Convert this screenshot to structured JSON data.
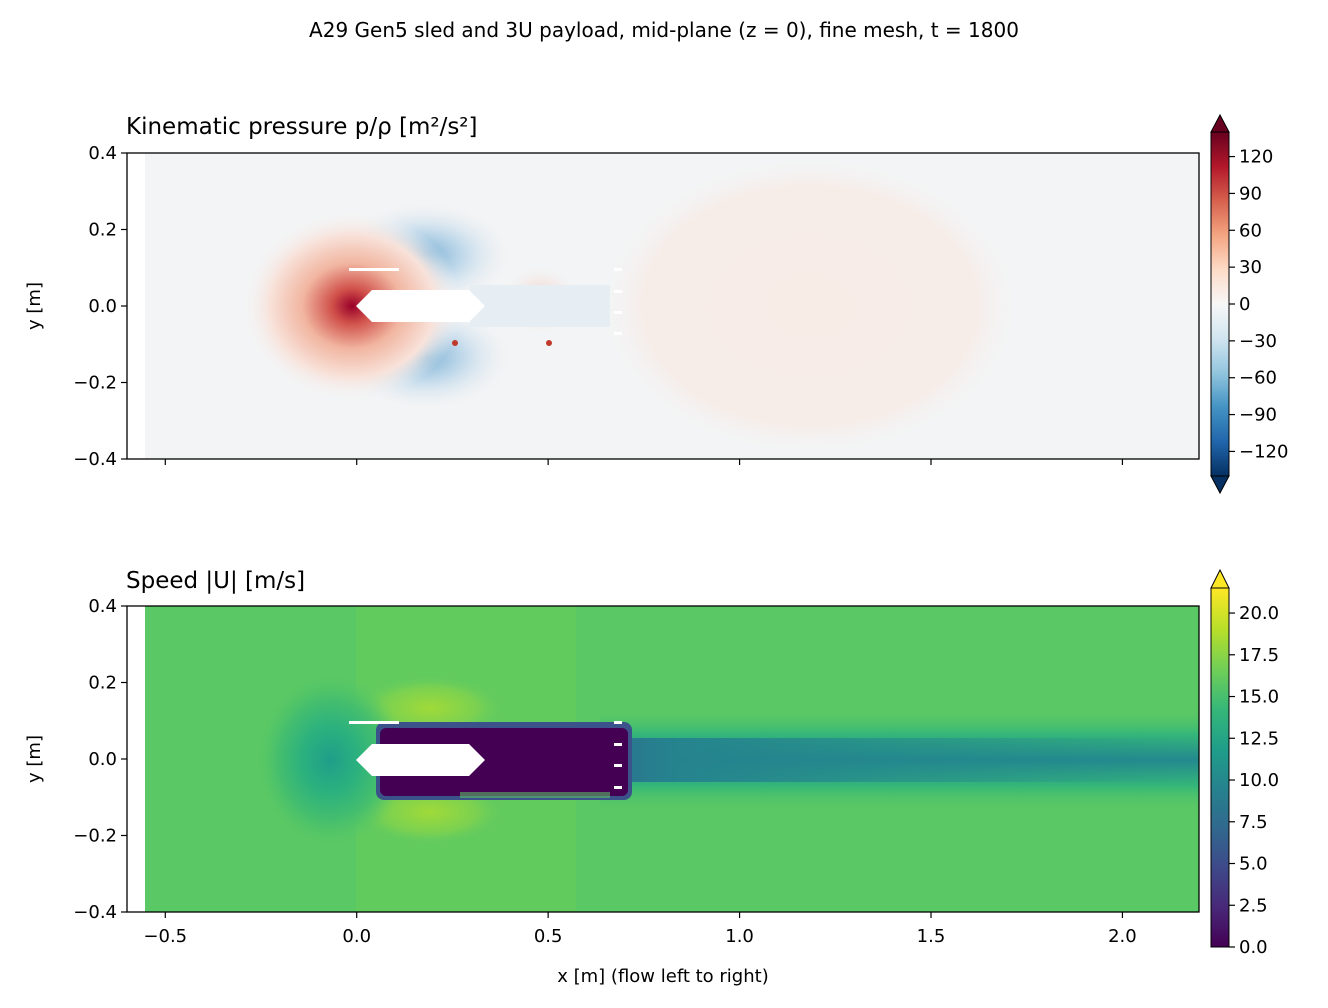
{
  "suptitle": "A29  Gen5 sled and 3U payload, mid-plane (z = 0), fine mesh, t = 1800",
  "xlabel": "x  [m]   (flow left to right)",
  "colors": {
    "body_outline": "#ffffff",
    "farfield_pressure": "#f3f4f5",
    "farfield_speed": "#5ac864"
  },
  "chart_data": [
    {
      "type": "heatmap",
      "title": "Kinematic pressure  p/ρ  [m²/s²]",
      "ylabel": "y  [m]",
      "xlim": [
        -0.6,
        2.2
      ],
      "ylim": [
        -0.4,
        0.4
      ],
      "domain_x": [
        -0.55,
        2.2
      ],
      "x_ticks": [
        -0.5,
        0.0,
        0.5,
        1.0,
        1.5,
        2.0
      ],
      "y_ticks": [
        0.4,
        0.2,
        0.0,
        -0.2,
        -0.4
      ],
      "y_tick_labels": [
        "0.4",
        "0.2",
        "0.0",
        "−0.2",
        "−0.4"
      ],
      "x_tick_labels_shown": false,
      "colormap": "RdBu_r",
      "colorbar": {
        "range": [
          -140,
          140
        ],
        "extend": "both",
        "ticks": [
          120,
          90,
          60,
          30,
          0,
          -30,
          -60,
          -90,
          -120
        ],
        "tick_labels": [
          "120",
          "90",
          "60",
          "30",
          "0",
          "−30",
          "−60",
          "−90",
          "−120"
        ]
      },
      "features": [
        {
          "name": "stagnation high pressure",
          "x": -0.02,
          "y": 0.0,
          "value": 140
        },
        {
          "name": "suction above body",
          "x": 0.18,
          "y": 0.14,
          "value": -45
        },
        {
          "name": "suction below body",
          "x": 0.18,
          "y": -0.14,
          "value": -45
        },
        {
          "name": "wake slight positive",
          "x": 1.05,
          "y": 0.0,
          "value": 4
        }
      ]
    },
    {
      "type": "heatmap",
      "title": "Speed  |U|  [m/s]",
      "ylabel": "y  [m]",
      "xlim": [
        -0.6,
        2.2
      ],
      "ylim": [
        -0.4,
        0.4
      ],
      "domain_x": [
        -0.55,
        2.2
      ],
      "x_ticks": [
        -0.5,
        0.0,
        0.5,
        1.0,
        1.5,
        2.0
      ],
      "x_tick_labels": [
        "−0.5",
        "0.0",
        "0.5",
        "1.0",
        "1.5",
        "2.0"
      ],
      "y_ticks": [
        0.4,
        0.2,
        0.0,
        -0.2,
        -0.4
      ],
      "y_tick_labels": [
        "0.4",
        "0.2",
        "0.0",
        "−0.2",
        "−0.4"
      ],
      "colormap": "viridis",
      "colorbar": {
        "range": [
          0,
          21.5
        ],
        "extend": "max",
        "ticks": [
          20.0,
          17.5,
          15.0,
          12.5,
          10.0,
          7.5,
          5.0,
          2.5,
          0.0
        ],
        "tick_labels": [
          "20.0",
          "17.5",
          "15.0",
          "12.5",
          "10.0",
          "7.5",
          "5.0",
          "2.5",
          "0.0"
        ]
      },
      "features": [
        {
          "name": "free stream",
          "value": 15.5
        },
        {
          "name": "upstream deceleration",
          "x": -0.15,
          "y": 0.0,
          "value": 11
        },
        {
          "name": "shoulder acceleration",
          "x": 0.2,
          "y": 0.12,
          "value": 17.5
        },
        {
          "name": "recirculation region",
          "x": 0.45,
          "y": 0.0,
          "value": 1
        },
        {
          "name": "far wake",
          "x": 1.5,
          "y": 0.0,
          "value": 11.5
        }
      ]
    }
  ]
}
